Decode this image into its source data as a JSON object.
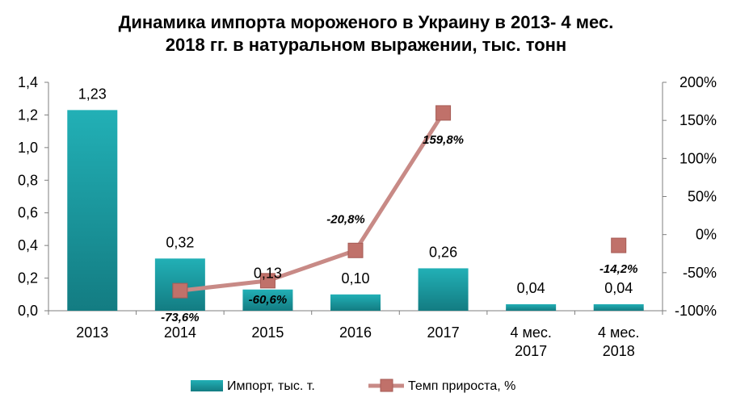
{
  "chart_data": {
    "type": "bar",
    "title_line1": "Динамика импорта мороженого в Украину в 2013- 4 мес.",
    "title_line2": "2018 гг. в натуральном выражении, тыс. тонн",
    "categories": [
      "2013",
      "2014",
      "2015",
      "2016",
      "2017",
      "4 мес. 2017",
      "4 мес. 2018"
    ],
    "category_lines": [
      [
        "2013"
      ],
      [
        "2014"
      ],
      [
        "2015"
      ],
      [
        "2016"
      ],
      [
        "2017"
      ],
      [
        "4 мес.",
        "2017"
      ],
      [
        "4 мес.",
        "2018"
      ]
    ],
    "series": [
      {
        "name": "Импорт, тыс. т.",
        "type": "bar",
        "axis": "left",
        "values": [
          1.23,
          0.32,
          0.13,
          0.1,
          0.26,
          0.04,
          0.04
        ],
        "labels": [
          "1,23",
          "0,32",
          "0,13",
          "0,10",
          "0,26",
          "0,04",
          "0,04"
        ],
        "color": "#1fa3aa"
      },
      {
        "name": "Темп прироста, %",
        "type": "line",
        "axis": "right",
        "values": [
          null,
          -73.6,
          -60.6,
          -20.8,
          159.8,
          null,
          -14.2
        ],
        "labels": [
          "",
          "-73,6%",
          "-60,6%",
          "-20,8%",
          "159,8%",
          "",
          "-14,2%"
        ],
        "color": "#c88a86",
        "marker_color": "#c0716a"
      }
    ],
    "y_left": {
      "ylim": [
        0,
        1.4
      ],
      "ticks": [
        0,
        0.2,
        0.4,
        0.6,
        0.8,
        1.0,
        1.2,
        1.4
      ],
      "tick_labels": [
        "0,0",
        "0,2",
        "0,4",
        "0,6",
        "0,8",
        "1,0",
        "1,2",
        "1,4"
      ]
    },
    "y_right": {
      "ylim": [
        -100,
        200
      ],
      "ticks": [
        -100,
        -50,
        0,
        50,
        100,
        150,
        200
      ],
      "tick_labels": [
        "-100%",
        "-50%",
        "0%",
        "50%",
        "100%",
        "150%",
        "200%"
      ]
    },
    "grid": false,
    "legend_position": "bottom"
  }
}
